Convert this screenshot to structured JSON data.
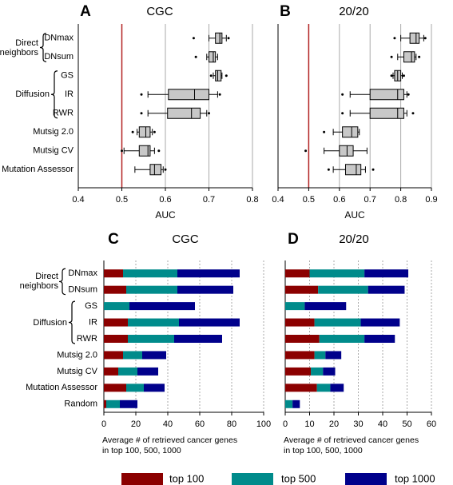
{
  "chart_data": [
    {
      "type": "box",
      "panel": "A",
      "title": "CGC",
      "xlabel": "AUC",
      "categories": [
        "DNmax",
        "DNsum",
        "GS",
        "IR",
        "RWR",
        "Mutsig 2.0",
        "Mutsig CV",
        "Mutation Assessor"
      ],
      "groups": [
        {
          "label": "Direct neighbors",
          "members": [
            "DNmax",
            "DNsum"
          ]
        },
        {
          "label": "Diffusion",
          "members": [
            "GS",
            "IR",
            "RWR"
          ]
        }
      ],
      "boxes": [
        {
          "min": 0.7,
          "q1": 0.715,
          "median": 0.725,
          "q3": 0.73,
          "max": 0.74,
          "outliers": [
            0.665,
            0.745
          ]
        },
        {
          "min": 0.695,
          "q1": 0.7,
          "median": 0.71,
          "q3": 0.715,
          "max": 0.72,
          "outliers": [
            0.67
          ]
        },
        {
          "min": 0.71,
          "q1": 0.715,
          "median": 0.72,
          "q3": 0.728,
          "max": 0.73,
          "outliers": [
            0.705,
            0.74
          ]
        },
        {
          "min": 0.56,
          "q1": 0.607,
          "median": 0.667,
          "q3": 0.7,
          "max": 0.72,
          "outliers": [
            0.545,
            0.725
          ]
        },
        {
          "min": 0.56,
          "q1": 0.605,
          "median": 0.66,
          "q3": 0.68,
          "max": 0.695,
          "outliers": [
            0.545,
            0.7
          ]
        },
        {
          "min": 0.535,
          "q1": 0.54,
          "median": 0.555,
          "q3": 0.565,
          "max": 0.57,
          "outliers": [
            0.525,
            0.575
          ]
        },
        {
          "min": 0.505,
          "q1": 0.54,
          "median": 0.56,
          "q3": 0.565,
          "max": 0.575,
          "outliers": [
            0.5,
            0.585
          ]
        },
        {
          "min": 0.53,
          "q1": 0.565,
          "median": 0.575,
          "q3": 0.59,
          "max": 0.595,
          "outliers": [
            0.6
          ]
        }
      ],
      "box_color": "#c8c8c8",
      "reference_line": 0.5,
      "reference_color": "#b22222",
      "xlim": [
        0.4,
        0.8
      ],
      "xticks": [
        0.4,
        0.5,
        0.6,
        0.7,
        0.8
      ],
      "grid": true
    },
    {
      "type": "box",
      "panel": "B",
      "title": "20/20",
      "xlabel": "AUC",
      "boxes": [
        {
          "min": 0.8,
          "q1": 0.83,
          "median": 0.85,
          "q3": 0.86,
          "max": 0.875,
          "outliers": [
            0.78,
            0.88
          ]
        },
        {
          "min": 0.79,
          "q1": 0.81,
          "median": 0.835,
          "q3": 0.845,
          "max": 0.85,
          "outliers": [
            0.77,
            0.86
          ]
        },
        {
          "min": 0.775,
          "q1": 0.78,
          "median": 0.79,
          "q3": 0.8,
          "max": 0.805,
          "outliers": [
            0.77,
            0.81
          ]
        },
        {
          "min": 0.635,
          "q1": 0.7,
          "median": 0.79,
          "q3": 0.81,
          "max": 0.82,
          "outliers": [
            0.61,
            0.825
          ]
        },
        {
          "min": 0.635,
          "q1": 0.7,
          "median": 0.79,
          "q3": 0.81,
          "max": 0.82,
          "outliers": [
            0.61,
            0.84
          ]
        },
        {
          "min": 0.58,
          "q1": 0.61,
          "median": 0.64,
          "q3": 0.66,
          "max": 0.665,
          "outliers": [
            0.55
          ]
        },
        {
          "min": 0.55,
          "q1": 0.6,
          "median": 0.625,
          "q3": 0.645,
          "max": 0.69,
          "outliers": [
            0.49
          ]
        },
        {
          "min": 0.58,
          "q1": 0.62,
          "median": 0.655,
          "q3": 0.67,
          "max": 0.685,
          "outliers": [
            0.565,
            0.71
          ]
        }
      ],
      "box_color": "#c8c8c8",
      "reference_line": 0.5,
      "reference_color": "#b22222",
      "xlim": [
        0.4,
        0.9
      ],
      "xticks": [
        0.4,
        0.5,
        0.6,
        0.7,
        0.8,
        0.9
      ],
      "grid": true
    },
    {
      "type": "bar",
      "stacked": true,
      "orientation": "horizontal",
      "panel": "C",
      "title": "CGC",
      "xlabel": "Average # of retrieved cancer genes in top 100, 500, 1000",
      "categories": [
        "DNmax",
        "DNsum",
        "GS",
        "IR",
        "RWR",
        "Mutsig 2.0",
        "Mutsig CV",
        "Mutation Assessor",
        "Random"
      ],
      "groups": [
        {
          "label": "Direct neighbors",
          "members": [
            "DNmax",
            "DNsum"
          ]
        },
        {
          "label": "Diffusion",
          "members": [
            "GS",
            "IR",
            "RWR"
          ]
        }
      ],
      "series": [
        {
          "name": "top 100",
          "color": "#8b0000",
          "values": [
            12,
            14,
            0,
            15,
            15,
            12,
            9,
            14,
            1.5
          ]
        },
        {
          "name": "top 500",
          "color": "#008b8b",
          "values": [
            34,
            32,
            16,
            32,
            29,
            12,
            12,
            11,
            8.5
          ]
        },
        {
          "name": "top 1000",
          "color": "#00008b",
          "values": [
            39,
            35,
            41,
            38,
            30,
            15,
            13,
            13,
            11
          ]
        }
      ],
      "xlim": [
        0,
        100
      ],
      "xticks": [
        0,
        20,
        40,
        60,
        80,
        100
      ],
      "grid": true
    },
    {
      "type": "bar",
      "stacked": true,
      "orientation": "horizontal",
      "panel": "D",
      "title": "20/20",
      "xlabel": "Average # of retrieved cancer genes in top 100, 500, 1000",
      "series": [
        {
          "color": "#8b0000",
          "values": [
            10,
            13.5,
            0,
            12,
            14,
            12,
            10.5,
            13,
            0
          ]
        },
        {
          "color": "#008b8b",
          "values": [
            22.5,
            20.5,
            8,
            19,
            18.5,
            4.5,
            5,
            5.5,
            3
          ]
        },
        {
          "color": "#00008b",
          "values": [
            18,
            15,
            17,
            16,
            12.5,
            6.5,
            5,
            5.5,
            3
          ]
        }
      ],
      "xlim": [
        0,
        60
      ],
      "xticks": [
        0,
        10,
        20,
        30,
        40,
        50,
        60
      ],
      "grid": true
    }
  ]
}
